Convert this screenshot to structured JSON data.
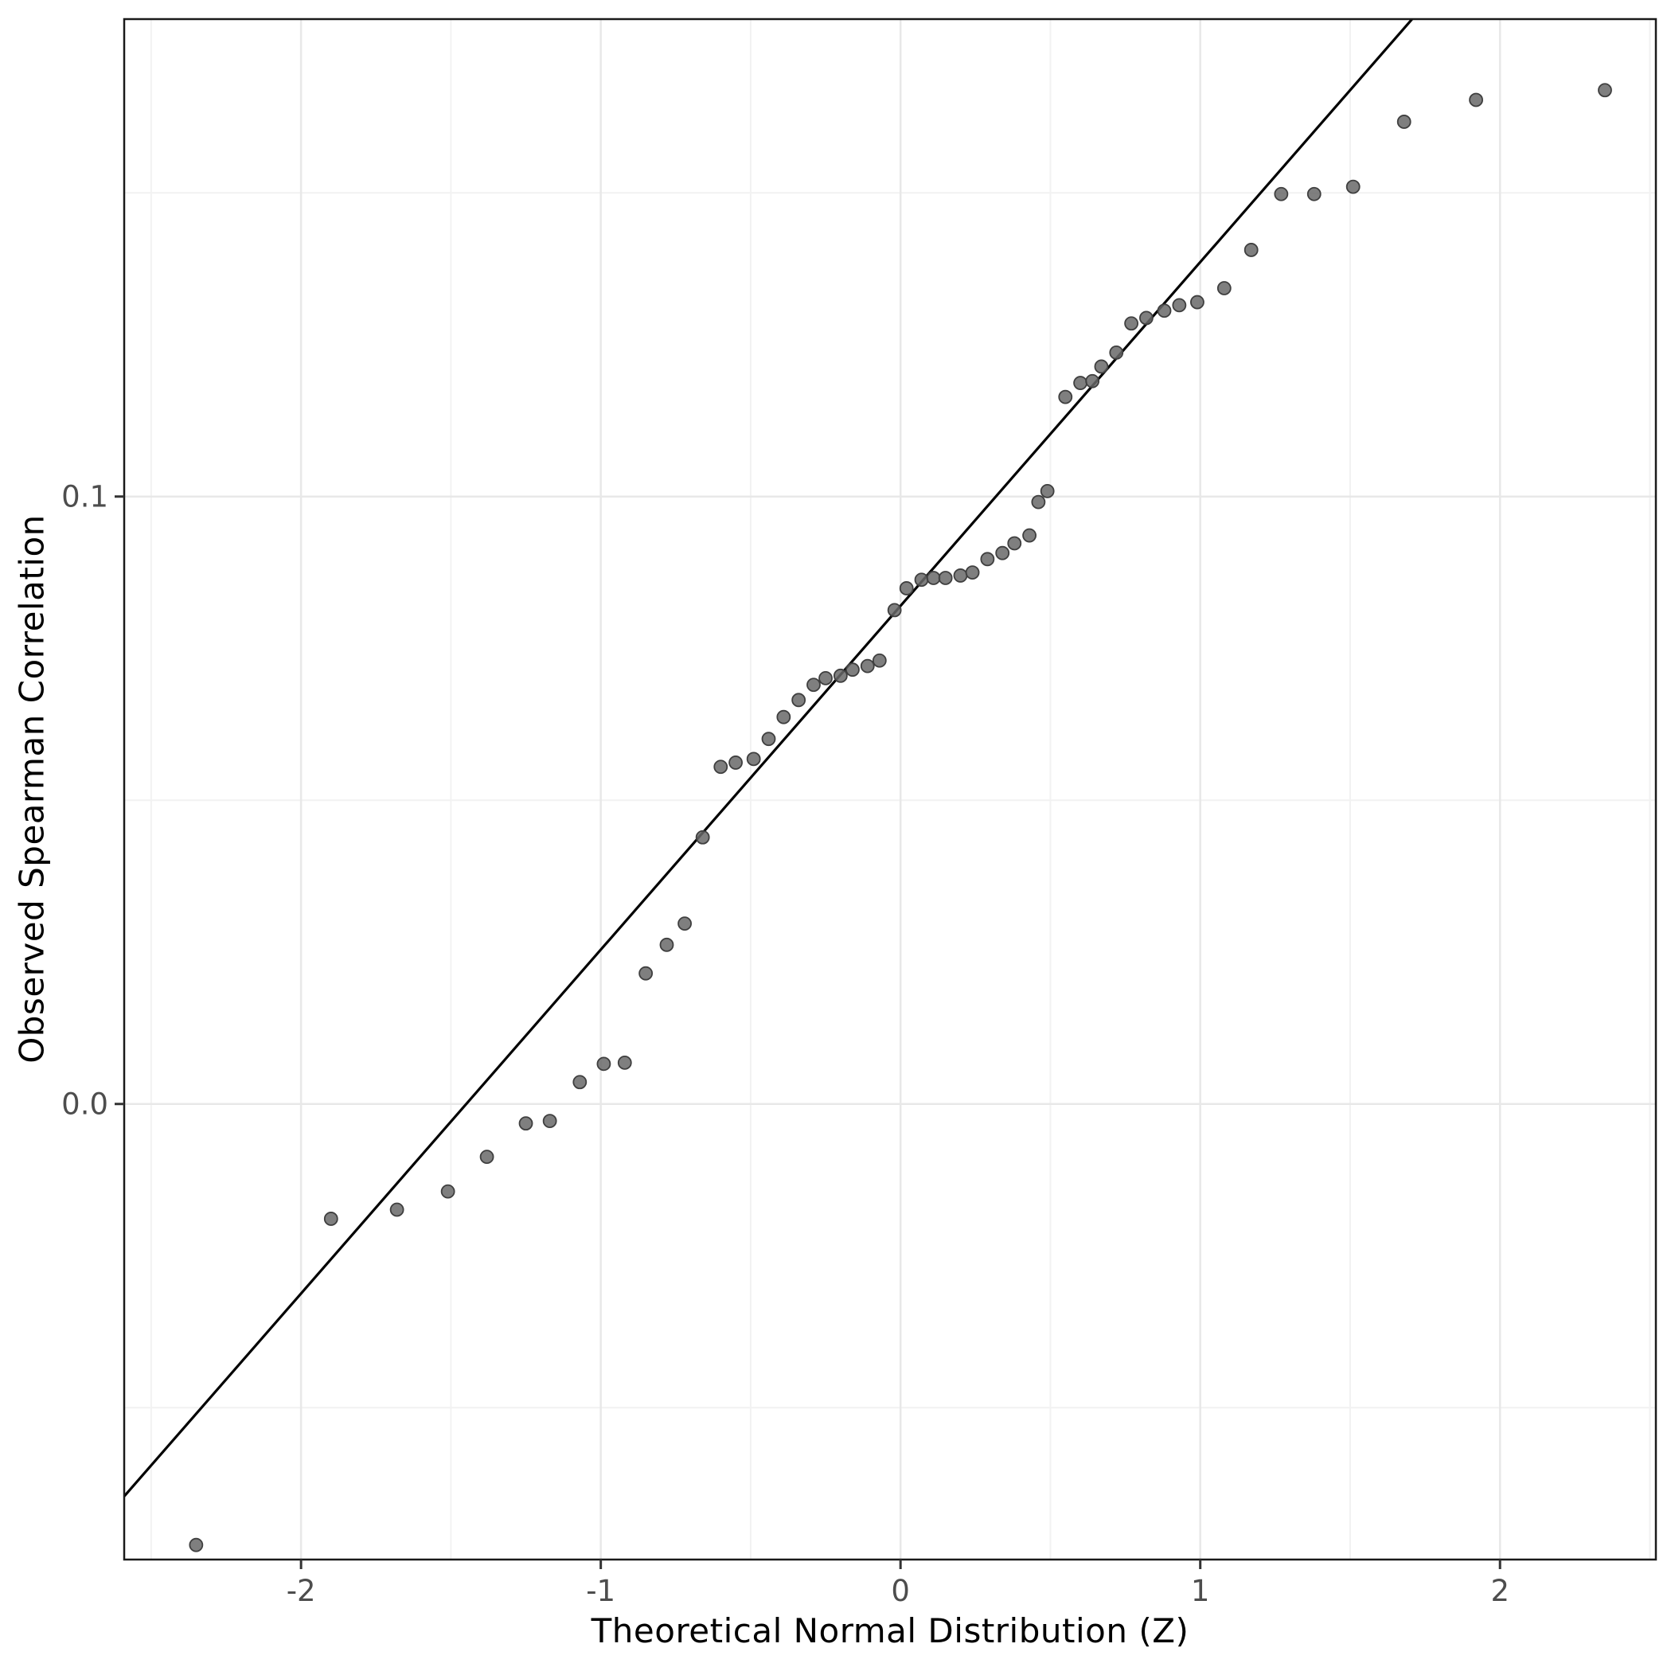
{
  "chart_data": {
    "type": "scatter",
    "title": "",
    "xlabel": "Theoretical Normal Distribution (Z)",
    "ylabel": "Observed Spearman Correlation",
    "xlim": [
      -2.59,
      2.52
    ],
    "ylim": [
      -0.075,
      0.1786
    ],
    "grid": true,
    "legend": "none",
    "x_major_ticks": [
      -2,
      -1,
      0,
      1,
      2
    ],
    "x_tick_labels": [
      "-2",
      "-1",
      "0",
      "1",
      "2"
    ],
    "x_minor_ticks": [
      -2.5,
      -1.5,
      -0.5,
      0.5,
      1.5,
      2.5
    ],
    "y_major_ticks": [
      0.0,
      0.1
    ],
    "y_tick_labels": [
      "0.0",
      "0.1"
    ],
    "y_minor_ticks": [
      -0.05,
      0.05,
      0.15
    ],
    "reference_line": {
      "slope": 0.0566,
      "intercept": 0.082
    },
    "points": [
      [
        -2.35,
        -0.0726
      ],
      [
        -1.9,
        -0.0189
      ],
      [
        -1.68,
        -0.0174
      ],
      [
        -1.51,
        -0.0144
      ],
      [
        -1.38,
        -0.0087
      ],
      [
        -1.25,
        -0.0032
      ],
      [
        -1.17,
        -0.0028
      ],
      [
        -1.07,
        0.0036
      ],
      [
        -0.99,
        0.0066
      ],
      [
        -0.92,
        0.0068
      ],
      [
        -0.85,
        0.0215
      ],
      [
        -0.78,
        0.0262
      ],
      [
        -0.72,
        0.0297
      ],
      [
        -0.66,
        0.0439
      ],
      [
        -0.6,
        0.0555
      ],
      [
        -0.55,
        0.0562
      ],
      [
        -0.49,
        0.0568
      ],
      [
        -0.44,
        0.0601
      ],
      [
        -0.39,
        0.0637
      ],
      [
        -0.34,
        0.0665
      ],
      [
        -0.29,
        0.069
      ],
      [
        -0.25,
        0.0701
      ],
      [
        -0.2,
        0.0705
      ],
      [
        -0.16,
        0.0715
      ],
      [
        -0.11,
        0.0721
      ],
      [
        -0.07,
        0.073
      ],
      [
        -0.02,
        0.0813
      ],
      [
        0.02,
        0.0849
      ],
      [
        0.07,
        0.0863
      ],
      [
        0.11,
        0.0866
      ],
      [
        0.15,
        0.0866
      ],
      [
        0.2,
        0.087
      ],
      [
        0.24,
        0.0875
      ],
      [
        0.29,
        0.0897
      ],
      [
        0.34,
        0.0907
      ],
      [
        0.38,
        0.0923
      ],
      [
        0.43,
        0.0936
      ],
      [
        0.46,
        0.0991
      ],
      [
        0.49,
        0.1009
      ],
      [
        0.55,
        0.1164
      ],
      [
        0.6,
        0.1187
      ],
      [
        0.64,
        0.119
      ],
      [
        0.67,
        0.1214
      ],
      [
        0.72,
        0.1237
      ],
      [
        0.77,
        0.1285
      ],
      [
        0.82,
        0.1294
      ],
      [
        0.88,
        0.1306
      ],
      [
        0.93,
        0.1315
      ],
      [
        0.99,
        0.132
      ],
      [
        1.08,
        0.1343
      ],
      [
        1.17,
        0.1406
      ],
      [
        1.27,
        0.1498
      ],
      [
        1.38,
        0.1498
      ],
      [
        1.51,
        0.151
      ],
      [
        1.68,
        0.1617
      ],
      [
        1.92,
        0.1653
      ],
      [
        2.35,
        0.1669
      ]
    ],
    "colors": {
      "point_fill": "#696969",
      "point_stroke": "#3f3f3f",
      "reference_line": "#000000",
      "grid_major": "#e8e8e8",
      "grid_minor": "#f2f2f2",
      "panel_border": "#1a1a1a",
      "tick": "#333333",
      "tick_label": "#4d4d4d",
      "background": "#ffffff"
    }
  }
}
